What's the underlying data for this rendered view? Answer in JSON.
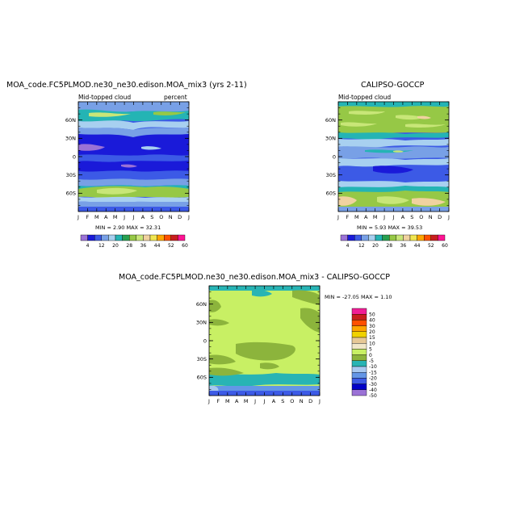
{
  "colorbar_top": {
    "colors": [
      "#9b72d6",
      "#1a1ad9",
      "#3c5ae6",
      "#78a0e6",
      "#a8d0f0",
      "#24b4b4",
      "#28a050",
      "#96c846",
      "#c8e678",
      "#f0d2a0",
      "#f0e650",
      "#ffa500",
      "#ff5000",
      "#c81e1e",
      "#ff1493"
    ],
    "labels": [
      "4",
      "12",
      "20",
      "28",
      "36",
      "44",
      "52",
      "60"
    ]
  },
  "colorbar_diff": {
    "colors": [
      "#9b72d6",
      "#0000c8",
      "#3c5ae6",
      "#6496e6",
      "#a8c8f0",
      "#28b4b4",
      "#8cb43c",
      "#c8f064",
      "#f0e6c8",
      "#e6c896",
      "#f0d200",
      "#ffa500",
      "#ff5000",
      "#c81e1e",
      "#f01e96"
    ],
    "labels": [
      "50",
      "40",
      "30",
      "20",
      "15",
      "10",
      "5",
      "0",
      "-5",
      "-10",
      "-15",
      "-20",
      "-30",
      "-40",
      "-50"
    ]
  },
  "panels": [
    {
      "title": "MOA_code.FC5PLMOD.ne30_ne30.edison.MOA_mix3 (yrs 2-11)",
      "left_label": "Mid-topped cloud",
      "right_label": "percent",
      "minmax": "MIN =    2.90  MAX =   32.31"
    },
    {
      "title": "CALIPSO-GOCCP",
      "left_label": "Mid-topped cloud",
      "right_label": "",
      "minmax": "MIN =    5.93  MAX =   39.53"
    },
    {
      "title": "MOA_code.FC5PLMOD.ne30_ne30.edison.MOA_mix3 - CALIPSO-GOCCP",
      "left_label": "",
      "right_label": "",
      "minmax": "MIN = -27.05  MAX =    1.10"
    }
  ],
  "chart_data": [
    {
      "type": "heatmap",
      "title": "MOA_code.FC5PLMOD.ne30_ne30.edison.MOA_mix3 (yrs 2-11)",
      "x_ticks": [
        "J",
        "F",
        "M",
        "A",
        "M",
        "J",
        "J",
        "A",
        "S",
        "O",
        "N",
        "D",
        "J"
      ],
      "y_ticks": [
        "60N",
        "30N",
        "0",
        "30S",
        "60S"
      ],
      "y_values": [
        60,
        30,
        0,
        -30,
        -60
      ],
      "ylim": [
        -90,
        90
      ],
      "units": "percent",
      "min": 2.9,
      "max": 32.31
    },
    {
      "type": "heatmap",
      "title": "CALIPSO-GOCCP",
      "x_ticks": [
        "J",
        "F",
        "M",
        "A",
        "M",
        "J",
        "J",
        "A",
        "S",
        "O",
        "N",
        "D",
        "J"
      ],
      "y_ticks": [
        "60N",
        "30N",
        "0",
        "30S",
        "60S"
      ],
      "y_values": [
        60,
        30,
        0,
        -30,
        -60
      ],
      "ylim": [
        -90,
        90
      ],
      "min": 5.93,
      "max": 39.53
    },
    {
      "type": "heatmap",
      "title": "MOA_code.FC5PLMOD.ne30_ne30.edison.MOA_mix3 - CALIPSO-GOCCP",
      "x_ticks": [
        "J",
        "F",
        "M",
        "A",
        "M",
        "J",
        "J",
        "A",
        "S",
        "O",
        "N",
        "D",
        "J"
      ],
      "y_ticks": [
        "60N",
        "30N",
        "0",
        "30S",
        "60S"
      ],
      "y_values": [
        60,
        30,
        0,
        -30,
        -60
      ],
      "ylim": [
        -90,
        90
      ],
      "min": -27.05,
      "max": 1.1
    }
  ]
}
